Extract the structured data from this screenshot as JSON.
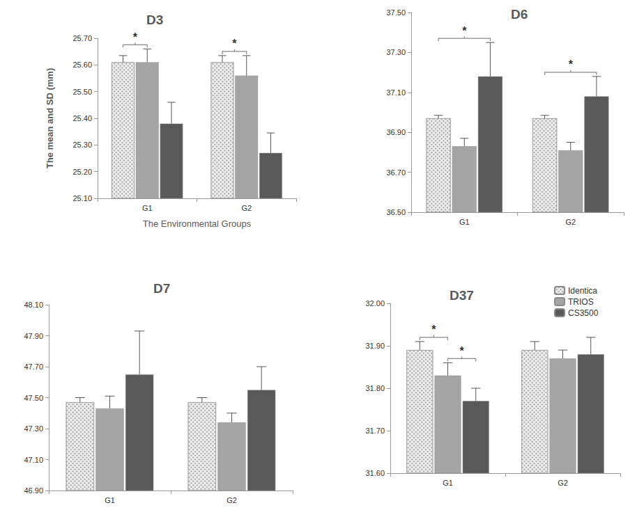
{
  "chart_data": [
    {
      "type": "bar",
      "title": "D3",
      "x_label": "The Environmental Groups",
      "y_label": "The mean and SD (mm)",
      "categories": [
        "G1",
        "G2"
      ],
      "series": [
        {
          "name": "Identica",
          "color": "#ececec",
          "values": [
            25.61,
            25.61
          ],
          "sd": [
            0.025,
            0.025
          ]
        },
        {
          "name": "TRIOS",
          "color": "#a5a5a5",
          "values": [
            25.61,
            25.56
          ],
          "sd": [
            0.05,
            0.075
          ]
        },
        {
          "name": "CS3500",
          "color": "#595959",
          "values": [
            25.38,
            25.27
          ],
          "sd": [
            0.08,
            0.075
          ]
        }
      ],
      "significance": [
        {
          "category": "G1",
          "between": [
            "Identica",
            "TRIOS"
          ],
          "label": "*"
        },
        {
          "category": "G2",
          "between": [
            "Identica",
            "TRIOS"
          ],
          "label": "*"
        }
      ],
      "ylim": [
        25.1,
        25.7
      ],
      "yticks": [
        {
          "value": 25.1,
          "label": "25.10"
        },
        {
          "value": 25.2,
          "label": "25.20"
        },
        {
          "value": 25.3,
          "label": "25.30"
        },
        {
          "value": 25.4,
          "label": "25.40"
        },
        {
          "value": 25.5,
          "label": "25.50"
        },
        {
          "value": 25.6,
          "label": "25.60"
        },
        {
          "value": 25.7,
          "label": "25.70"
        }
      ],
      "grid": false
    },
    {
      "type": "bar",
      "title": "D6",
      "categories": [
        "G1",
        "G2"
      ],
      "series": [
        {
          "name": "Identica",
          "color": "#ececec",
          "values": [
            36.97,
            36.97
          ],
          "sd": [
            0.015,
            0.015
          ]
        },
        {
          "name": "TRIOS",
          "color": "#a5a5a5",
          "values": [
            36.83,
            36.81
          ],
          "sd": [
            0.04,
            0.04
          ]
        },
        {
          "name": "CS3500",
          "color": "#595959",
          "values": [
            37.18,
            37.08
          ],
          "sd": [
            0.17,
            0.1
          ]
        }
      ],
      "significance": [
        {
          "category": "G1",
          "between": [
            "Identica",
            "CS3500"
          ],
          "label": "*"
        },
        {
          "category": "G2",
          "between": [
            "Identica",
            "CS3500"
          ],
          "label": "*"
        }
      ],
      "ylim": [
        36.5,
        37.5
      ],
      "yticks": [
        {
          "value": 36.5,
          "label": "36.50"
        },
        {
          "value": 36.7,
          "label": "36.70"
        },
        {
          "value": 36.9,
          "label": "36.90"
        },
        {
          "value": 37.1,
          "label": "37.10"
        },
        {
          "value": 37.3,
          "label": "37.30"
        },
        {
          "value": 37.5,
          "label": "37.50"
        }
      ],
      "grid": false
    },
    {
      "type": "bar",
      "title": "D7",
      "categories": [
        "G1",
        "G2"
      ],
      "series": [
        {
          "name": "Identica",
          "color": "#ececec",
          "values": [
            47.47,
            47.47
          ],
          "sd": [
            0.03,
            0.03
          ]
        },
        {
          "name": "TRIOS",
          "color": "#a5a5a5",
          "values": [
            47.43,
            47.34
          ],
          "sd": [
            0.08,
            0.06
          ]
        },
        {
          "name": "CS3500",
          "color": "#595959",
          "values": [
            47.65,
            47.55
          ],
          "sd": [
            0.28,
            0.15
          ]
        }
      ],
      "significance": [],
      "ylim": [
        46.9,
        48.1
      ],
      "yticks": [
        {
          "value": 46.9,
          "label": "46.90"
        },
        {
          "value": 47.1,
          "label": "47.10"
        },
        {
          "value": 47.3,
          "label": "47.30"
        },
        {
          "value": 47.5,
          "label": "47.50"
        },
        {
          "value": 47.7,
          "label": "47.70"
        },
        {
          "value": 47.9,
          "label": "47.90"
        },
        {
          "value": 48.1,
          "label": "48.10"
        }
      ],
      "grid": false
    },
    {
      "type": "bar",
      "title": "D37",
      "categories": [
        "G1",
        "G2"
      ],
      "series": [
        {
          "name": "Identica",
          "color": "#ececec",
          "values": [
            31.89,
            31.89
          ],
          "sd": [
            0.02,
            0.02
          ]
        },
        {
          "name": "TRIOS",
          "color": "#a5a5a5",
          "values": [
            31.83,
            31.87
          ],
          "sd": [
            0.03,
            0.02
          ]
        },
        {
          "name": "CS3500",
          "color": "#595959",
          "values": [
            31.77,
            31.88
          ],
          "sd": [
            0.03,
            0.04
          ]
        }
      ],
      "significance": [
        {
          "category": "G1",
          "between": [
            "Identica",
            "TRIOS"
          ],
          "label": "*"
        },
        {
          "category": "G1",
          "between": [
            "TRIOS",
            "CS3500"
          ],
          "label": "*"
        }
      ],
      "ylim": [
        31.6,
        32.0
      ],
      "yticks": [
        {
          "value": 31.6,
          "label": "31.60"
        },
        {
          "value": 31.7,
          "label": "31.70"
        },
        {
          "value": 31.8,
          "label": "31.80"
        },
        {
          "value": 31.9,
          "label": "31.90"
        },
        {
          "value": 32.0,
          "label": "32.00"
        }
      ],
      "grid": false,
      "legend": "upper right"
    }
  ]
}
